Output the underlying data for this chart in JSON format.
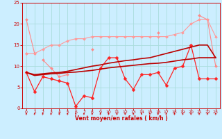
{
  "x": [
    0,
    1,
    2,
    3,
    4,
    5,
    6,
    7,
    8,
    9,
    10,
    11,
    12,
    13,
    14,
    15,
    16,
    17,
    18,
    19,
    20,
    21,
    22,
    23
  ],
  "lines": [
    {
      "y": [
        21,
        13,
        null,
        null,
        null,
        null,
        null,
        null,
        null,
        null,
        null,
        null,
        null,
        null,
        null,
        null,
        null,
        null,
        null,
        null,
        null,
        null,
        null,
        null
      ],
      "color": "#ff8888",
      "lw": 0.8,
      "marker": "D",
      "ms": 2.0
    },
    {
      "y": [
        13,
        null,
        null,
        null,
        null,
        null,
        null,
        null,
        null,
        null,
        null,
        null,
        null,
        null,
        null,
        null,
        null,
        null,
        null,
        null,
        null,
        22,
        21,
        10
      ],
      "color": "#ff8888",
      "lw": 0.8,
      "marker": "D",
      "ms": 2.0
    },
    {
      "y": [
        null,
        null,
        11.5,
        9.5,
        7.5,
        8.0,
        null,
        null,
        null,
        null,
        null,
        null,
        null,
        null,
        null,
        null,
        null,
        null,
        null,
        null,
        null,
        null,
        null,
        null
      ],
      "color": "#ff8888",
      "lw": 0.8,
      "marker": "D",
      "ms": 2.0
    },
    {
      "y": [
        null,
        null,
        null,
        null,
        null,
        null,
        null,
        null,
        14,
        null,
        null,
        null,
        null,
        null,
        null,
        null,
        null,
        null,
        null,
        null,
        null,
        null,
        null,
        null
      ],
      "color": "#ff8888",
      "lw": 0.8,
      "marker": "D",
      "ms": 2.0
    },
    {
      "y": [
        null,
        null,
        null,
        null,
        null,
        null,
        null,
        null,
        null,
        null,
        null,
        null,
        null,
        null,
        null,
        null,
        18,
        null,
        null,
        null,
        null,
        null,
        null,
        null
      ],
      "color": "#ff8888",
      "lw": 0.8,
      "marker": "D",
      "ms": 2.0
    },
    {
      "y": [
        13,
        13,
        14,
        15,
        15,
        16,
        16.5,
        16.5,
        17,
        17,
        17,
        17,
        17,
        17,
        17,
        17,
        17,
        17,
        17.5,
        18,
        20,
        21,
        21,
        17
      ],
      "color": "#ff9999",
      "lw": 0.8,
      "marker": "D",
      "ms": 2.0
    },
    {
      "y": [
        8.5,
        null,
        null,
        null,
        null,
        null,
        null,
        null,
        null,
        null,
        null,
        null,
        null,
        null,
        null,
        null,
        null,
        null,
        null,
        null,
        null,
        null,
        null,
        null
      ],
      "color": "#ff8888",
      "lw": 0.8,
      "marker": "D",
      "ms": 2.0
    },
    {
      "y": [
        8.5,
        4,
        7.5,
        7.0,
        6.5,
        6.0,
        0.5,
        3.0,
        2.5,
        9.5,
        12,
        12,
        7.0,
        4.5,
        8.0,
        8.0,
        8.5,
        5.5,
        9.5,
        10,
        15,
        7.0,
        7.0,
        7.0
      ],
      "color": "#ff2222",
      "lw": 0.9,
      "marker": "D",
      "ms": 2.5
    },
    {
      "y": [
        8.5,
        7.8,
        8.0,
        8.2,
        8.3,
        8.5,
        8.6,
        8.8,
        9.0,
        9.3,
        9.6,
        9.8,
        10.0,
        10.2,
        10.4,
        10.6,
        10.7,
        10.9,
        11.2,
        11.5,
        11.7,
        12.0,
        12.0,
        12.0
      ],
      "color": "#bb0000",
      "lw": 1.2,
      "marker": null,
      "ms": 0
    },
    {
      "y": [
        8.5,
        8.0,
        8.2,
        8.4,
        8.5,
        8.8,
        9.2,
        9.6,
        10.0,
        10.3,
        10.7,
        11.0,
        11.3,
        11.5,
        11.8,
        12.0,
        12.5,
        13.0,
        13.5,
        14.0,
        14.5,
        15.0,
        15.0,
        12.0
      ],
      "color": "#bb0000",
      "lw": 1.2,
      "marker": null,
      "ms": 0
    }
  ],
  "xlim": [
    -0.5,
    23.5
  ],
  "ylim": [
    0,
    25
  ],
  "xticks": [
    0,
    1,
    2,
    3,
    4,
    5,
    6,
    7,
    8,
    9,
    10,
    11,
    12,
    13,
    14,
    15,
    16,
    17,
    18,
    19,
    20,
    21,
    22,
    23
  ],
  "yticks": [
    0,
    5,
    10,
    15,
    20,
    25
  ],
  "xlabel": "Vent moyen/en rafales ( km/h )",
  "bg_color": "#cceeff",
  "grid_color": "#aadddd",
  "tick_color": "#cc0000",
  "label_color": "#cc0000",
  "spine_color": "#cc0000"
}
